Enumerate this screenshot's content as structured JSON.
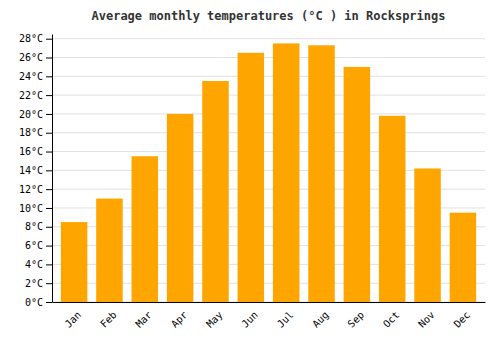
{
  "chart_data": {
    "type": "bar",
    "title": "Average monthly temperatures (°C ) in Rocksprings",
    "categories": [
      "Jan",
      "Feb",
      "Mar",
      "Apr",
      "May",
      "Jun",
      "Jul",
      "Aug",
      "Sep",
      "Oct",
      "Nov",
      "Dec"
    ],
    "values": [
      8.5,
      11.0,
      15.5,
      20.0,
      23.5,
      26.5,
      27.5,
      27.3,
      25.0,
      19.8,
      14.2,
      9.5
    ],
    "color": "#FFA500",
    "ylim": [
      0,
      28.5
    ],
    "yticks": [
      {
        "value": 0,
        "label": "0°C"
      },
      {
        "value": 2,
        "label": "2°C"
      },
      {
        "value": 4,
        "label": "4°C"
      },
      {
        "value": 6,
        "label": "6°C"
      },
      {
        "value": 8,
        "label": "8°C"
      },
      {
        "value": 10,
        "label": "10°C"
      },
      {
        "value": 12,
        "label": "12°C"
      },
      {
        "value": 14,
        "label": "14°C"
      },
      {
        "value": 16,
        "label": "16°C"
      },
      {
        "value": 18,
        "label": "18°C"
      },
      {
        "value": 20,
        "label": "20°C"
      },
      {
        "value": 22,
        "label": "22°C"
      },
      {
        "value": 24,
        "label": "24°C"
      },
      {
        "value": 26,
        "label": "26°C"
      },
      {
        "value": 28,
        "label": "28°C"
      }
    ],
    "grid": true
  }
}
